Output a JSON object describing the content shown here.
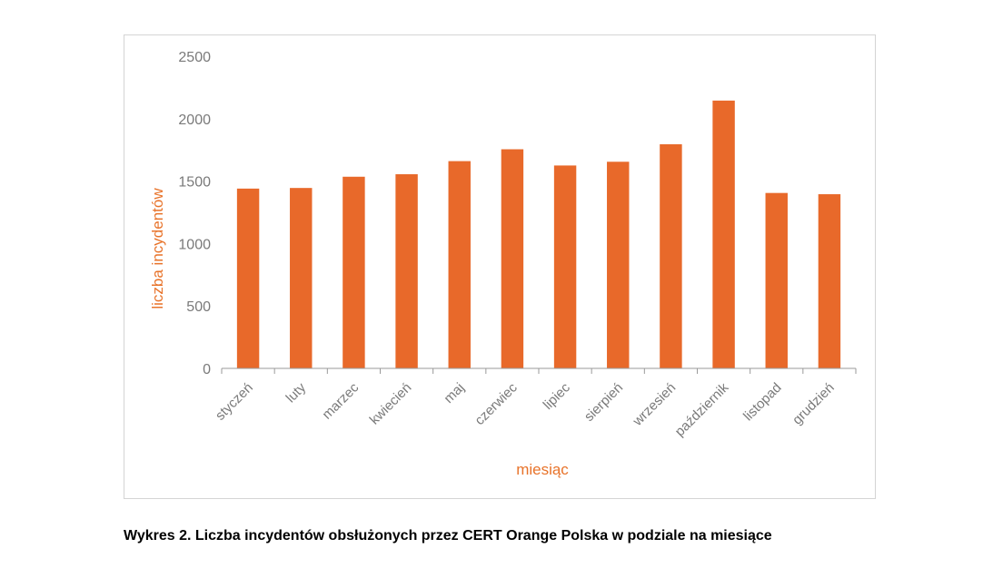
{
  "caption": "Wykres 2. Liczba incydentów obsłużonych przez CERT Orange Polska w podziale na miesiące",
  "chart_data": {
    "type": "bar",
    "categories": [
      "styczeń",
      "luty",
      "marzec",
      "kwiecień",
      "maj",
      "czerwiec",
      "lipiec",
      "sierpień",
      "wrzesień",
      "październik",
      "listopad",
      "grudzień"
    ],
    "values": [
      1440,
      1445,
      1535,
      1555,
      1660,
      1755,
      1625,
      1655,
      1795,
      2145,
      1405,
      1395
    ],
    "xlabel": "miesiąc",
    "ylabel": "liczba incydentów",
    "ylim": [
      0,
      2500
    ],
    "yticks": [
      0,
      500,
      1000,
      1500,
      2000,
      2500
    ],
    "grid": false,
    "legend": "none",
    "bar_color": "#e8692a",
    "axis_title_color": "#e8732a"
  }
}
